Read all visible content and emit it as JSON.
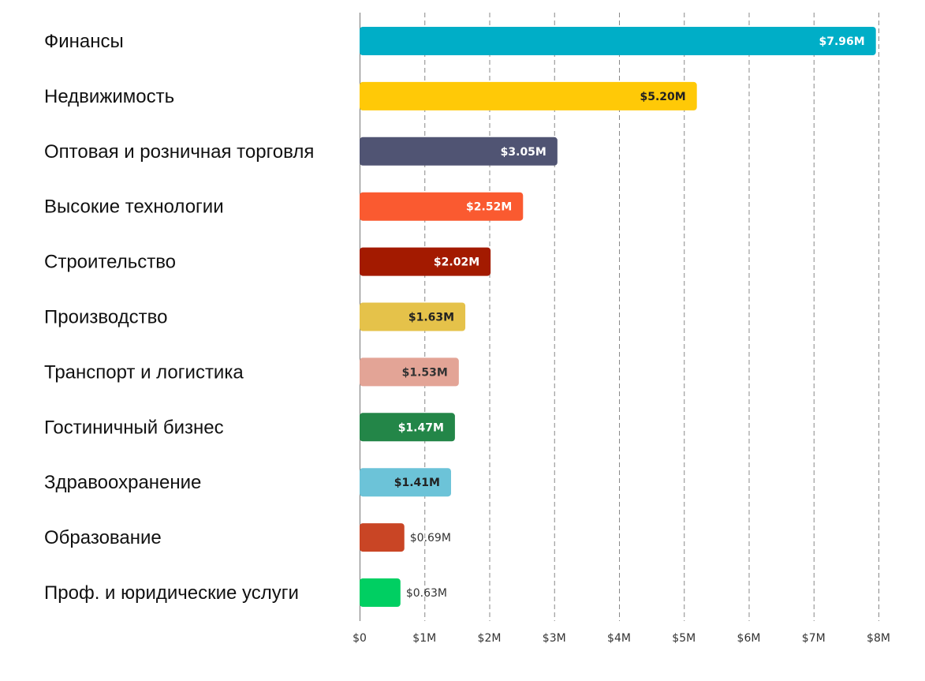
{
  "chart_data": {
    "type": "bar",
    "orientation": "horizontal",
    "categories": [
      "Финансы",
      "Недвижимость",
      "Оптовая и розничная торговля",
      "Высокие технологии",
      "Строительство",
      "Производство",
      "Транспорт и логистика",
      "Гостиничный бизнес",
      "Здравоохранение",
      "Образование",
      "Проф. и юридические услуги"
    ],
    "values": [
      7.96,
      5.2,
      3.05,
      2.52,
      2.02,
      1.63,
      1.53,
      1.47,
      1.41,
      0.69,
      0.63
    ],
    "value_labels": [
      "$7.96M",
      "$5.20M",
      "$3.05M",
      "$2.52M",
      "$2.02M",
      "$1.63M",
      "$1.53M",
      "$1.47M",
      "$1.41M",
      "$0.69M",
      "$0.63M"
    ],
    "colors": [
      "#00AEC7",
      "#FFC907",
      "#505473",
      "#FA5A30",
      "#A31A00",
      "#E5C24A",
      "#E3A496",
      "#238648",
      "#6CC3D8",
      "#C94525",
      "#00CF62"
    ],
    "label_colors": [
      "#ffffff",
      "#222222",
      "#ffffff",
      "#ffffff",
      "#ffffff",
      "#222222",
      "#333333",
      "#ffffff",
      "#222222",
      "#333333",
      "#333333"
    ],
    "xlim": [
      0,
      8
    ],
    "xticks": [
      0,
      1,
      2,
      3,
      4,
      5,
      6,
      7,
      8
    ],
    "xtick_labels": [
      "$0",
      "$1M",
      "$2M",
      "$3M",
      "$4M",
      "$5M",
      "$6M",
      "$7M",
      "$8M"
    ],
    "title": "",
    "xlabel": "",
    "ylabel": "",
    "grid": "vertical dashed",
    "legend": "none"
  }
}
